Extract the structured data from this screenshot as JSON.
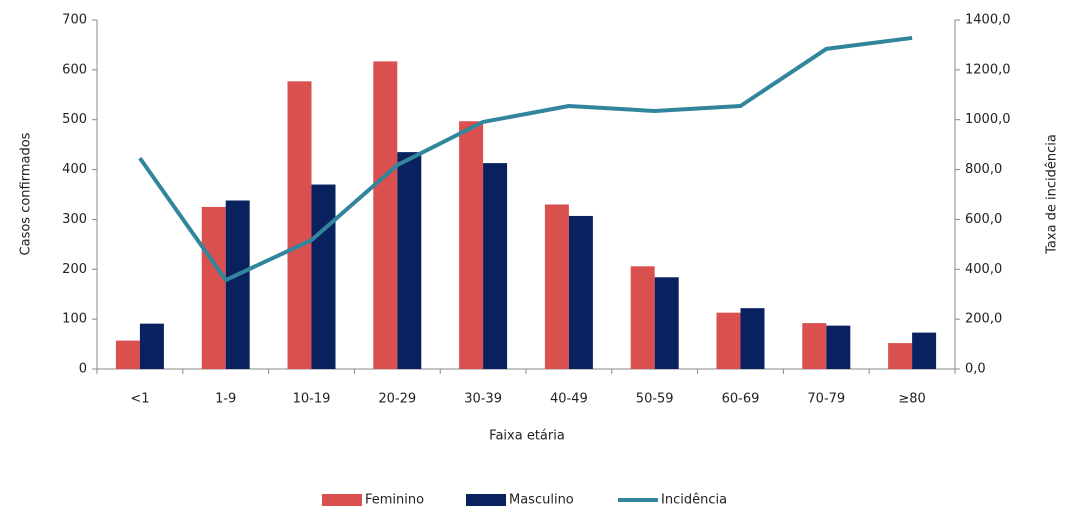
{
  "chart_data": {
    "type": "bar-line",
    "x_label": "Faixa etária",
    "y_label": "Casos confirmados",
    "y2_label": "Taxa de incidência",
    "categories": [
      "<1",
      "1-9",
      "10-19",
      "20-29",
      "30-39",
      "40-49",
      "50-59",
      "60-69",
      "70-79",
      "≥80"
    ],
    "series": [
      {
        "name": "Feminino",
        "kind": "bar",
        "color": "#d9504f",
        "values": [
          57,
          325,
          577,
          617,
          497,
          330,
          206,
          113,
          92,
          52
        ]
      },
      {
        "name": "Masculino",
        "kind": "bar",
        "color": "#0a2160",
        "values": [
          91,
          338,
          370,
          435,
          413,
          307,
          184,
          122,
          87,
          73
        ]
      },
      {
        "name": "Incidência",
        "kind": "line",
        "axis": "y2",
        "color": "#31859c",
        "values": [
          846,
          357,
          517,
          818,
          991,
          1055,
          1035,
          1055,
          1284,
          1328
        ]
      }
    ],
    "ylim": [
      0,
      700
    ],
    "yticks": [
      0,
      100,
      200,
      300,
      400,
      500,
      600,
      700
    ],
    "y2lim": [
      0,
      1400
    ],
    "y2ticks": [
      {
        "value": 0,
        "label": "0,0"
      },
      {
        "value": 200,
        "label": "200,0"
      },
      {
        "value": 400,
        "label": "400,0"
      },
      {
        "value": 600,
        "label": "600,0"
      },
      {
        "value": 800,
        "label": "800,0"
      },
      {
        "value": 1000,
        "label": "1000,0"
      },
      {
        "value": 1200,
        "label": "1200,0"
      },
      {
        "value": 1400,
        "label": "1400,0"
      }
    ],
    "grid": false,
    "legend": "bottom"
  }
}
